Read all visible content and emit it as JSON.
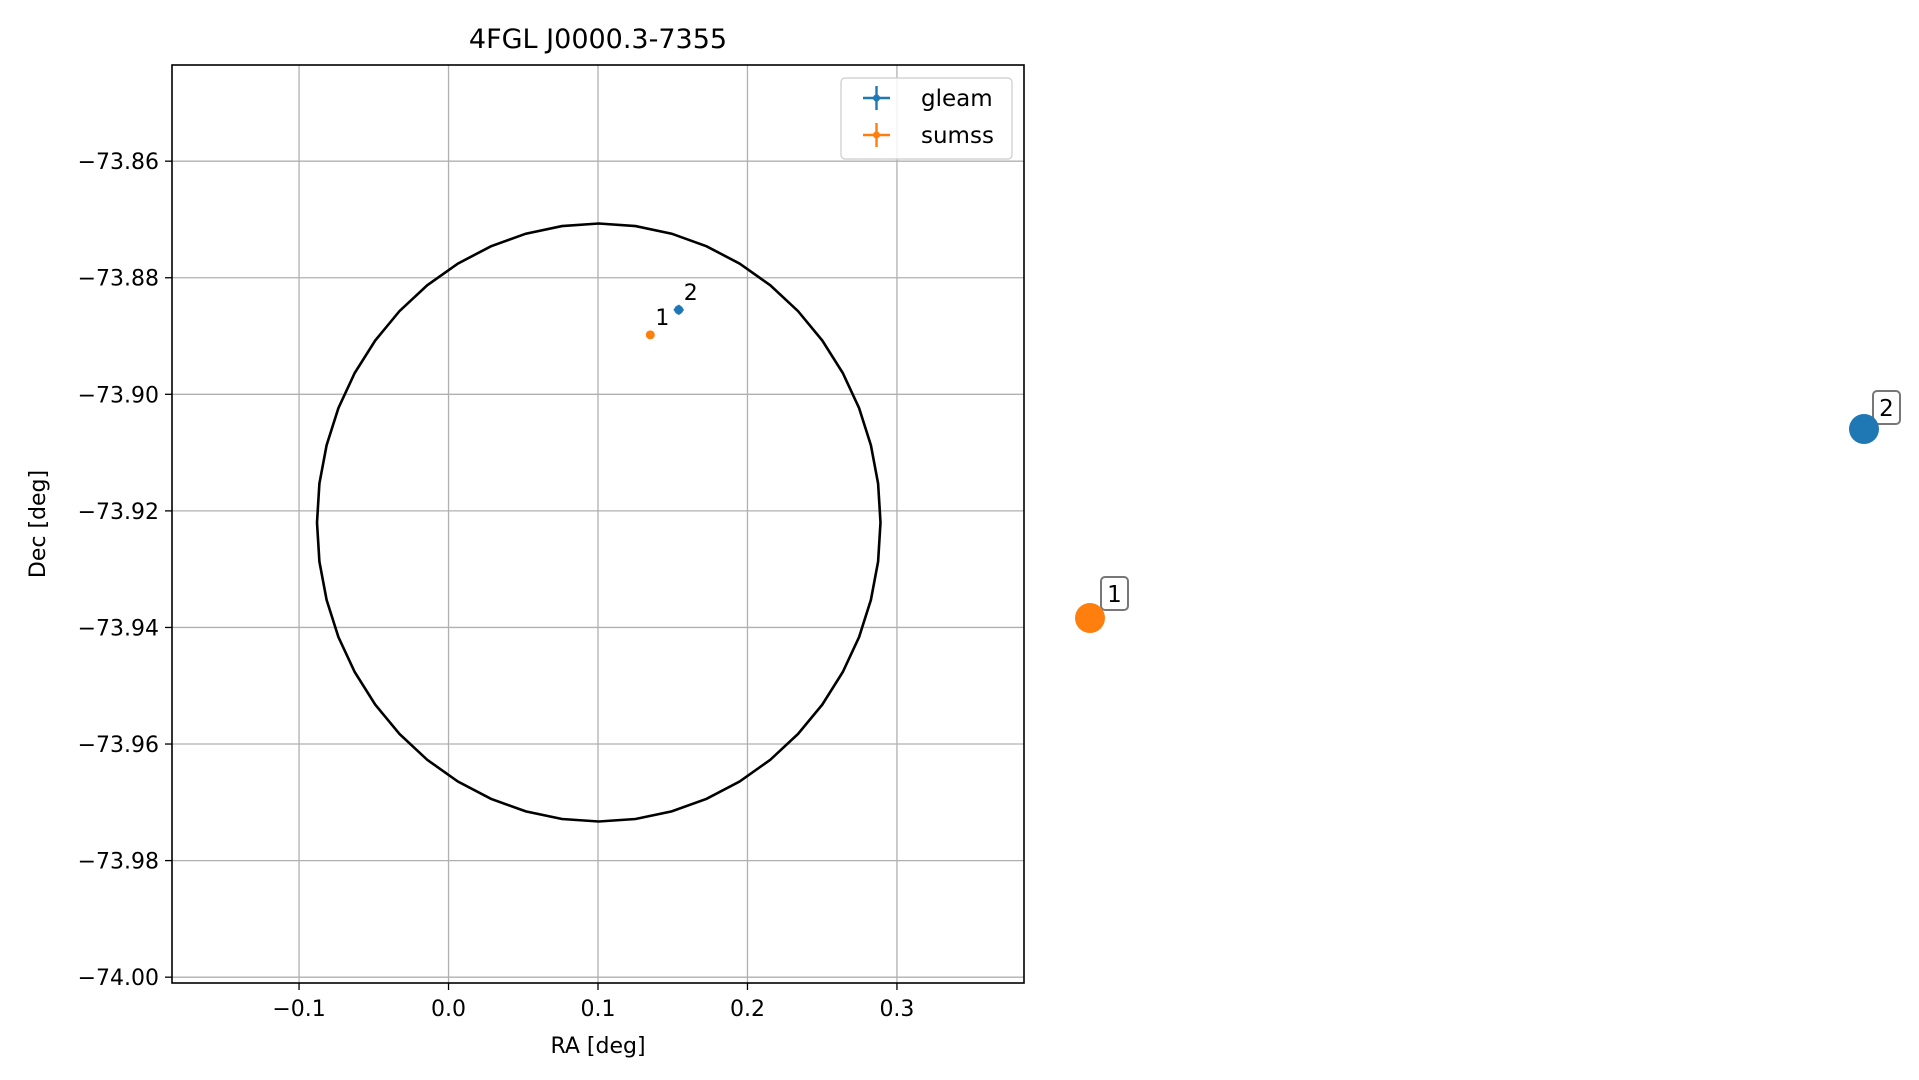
{
  "chart_data": [
    {
      "type": "scatter",
      "title": "4FGL J0000.3-7355",
      "xlabel": "RA [deg]",
      "ylabel": "Dec [deg]",
      "xlim": [
        -0.185,
        0.385
      ],
      "ylim": [
        -74.001,
        -73.8435
      ],
      "grid": true,
      "legend_position": "top-right",
      "xticks": [
        -0.1,
        0.0,
        0.1,
        0.2,
        0.3
      ],
      "xtick_labels": [
        "−0.1",
        "0.0",
        "0.1",
        "0.2",
        "0.3"
      ],
      "yticks": [
        -73.86,
        -73.88,
        -73.9,
        -73.92,
        -73.94,
        -73.96,
        -73.98,
        -74.0
      ],
      "ytick_labels": [
        "−73.86",
        "−73.88",
        "−73.90",
        "−73.92",
        "−73.94",
        "−73.96",
        "−73.98",
        "−74.00"
      ],
      "ellipse": {
        "center_ra": 0.1005,
        "center_dec": -73.922,
        "semi_ra": 0.1885,
        "semi_dec": 0.0513,
        "color": "#000000"
      },
      "series": [
        {
          "name": "gleam",
          "color": "#1f77b4",
          "points": [
            {
              "label": "2",
              "ra": 0.154,
              "dec": -73.8855
            }
          ]
        },
        {
          "name": "sumss",
          "color": "#ff7f0e",
          "points": [
            {
              "label": "1",
              "ra": 0.135,
              "dec": -73.8898
            }
          ]
        }
      ]
    },
    {
      "type": "scatter",
      "title": "",
      "points": [
        {
          "label": "2",
          "color": "#1f77b4"
        },
        {
          "label": "1",
          "color": "#ff7f0e"
        }
      ]
    }
  ]
}
